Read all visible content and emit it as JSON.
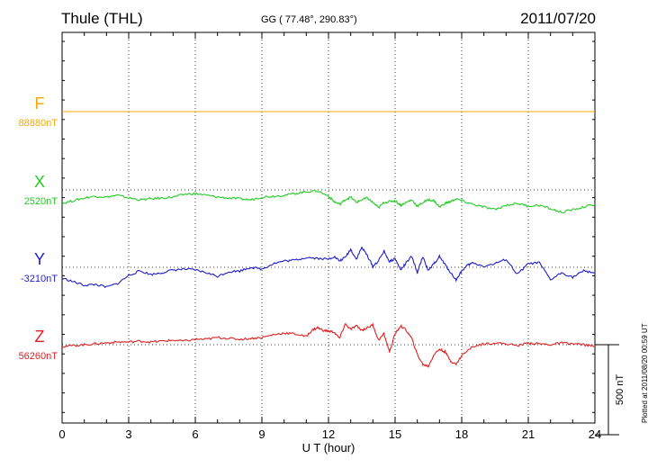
{
  "header": {
    "station": "Thule (THL)",
    "coords": "GG ( 77.48°, 290.83°)",
    "date": "2011/07/20"
  },
  "footer": {
    "plotted": "Plotted at 2011/08/20 00:59 UT"
  },
  "chart_data": {
    "type": "line",
    "xlabel": "U T (hour)",
    "xlim": [
      0,
      24
    ],
    "xticks": [
      "0",
      "3",
      "6",
      "9",
      "12",
      "15",
      "18",
      "21",
      "24"
    ],
    "scale_bar": {
      "label": "500 nT",
      "value": 500
    },
    "grid": true,
    "series": [
      {
        "name": "F",
        "baseline_label": "88880nT",
        "color": "#f5a800",
        "x": [
          0,
          24
        ],
        "y": [
          0,
          0
        ]
      },
      {
        "name": "X",
        "baseline_label": "2520nT",
        "color": "#22cc22",
        "x": [
          0,
          0.5,
          1,
          1.5,
          2,
          2.5,
          3,
          3.5,
          4,
          4.5,
          5,
          5.5,
          6,
          6.5,
          7,
          7.5,
          8,
          8.5,
          9,
          9.5,
          10,
          10.5,
          11,
          11.5,
          12,
          12.25,
          12.5,
          12.75,
          13,
          13.25,
          13.5,
          13.75,
          14,
          14.25,
          14.5,
          14.75,
          15,
          15.25,
          15.5,
          15.75,
          16,
          16.25,
          16.5,
          16.75,
          17,
          17.25,
          17.5,
          17.75,
          18,
          18.5,
          19,
          19.5,
          20,
          20.5,
          21,
          21.5,
          22,
          22.5,
          23,
          23.5,
          24
        ],
        "y": [
          -75,
          -60,
          -45,
          -35,
          -40,
          -30,
          -45,
          -55,
          -50,
          -45,
          -40,
          -25,
          -20,
          -30,
          -40,
          -45,
          -50,
          -55,
          -40,
          -35,
          -30,
          -20,
          -10,
          -5,
          -35,
          -65,
          -80,
          -55,
          -40,
          -70,
          -55,
          -45,
          -70,
          -100,
          -70,
          -65,
          -60,
          -85,
          -70,
          -55,
          -90,
          -70,
          -55,
          -60,
          -95,
          -75,
          -65,
          -50,
          -60,
          -80,
          -95,
          -110,
          -85,
          -75,
          -90,
          -85,
          -105,
          -125,
          -110,
          -95,
          -80
        ]
      },
      {
        "name": "Y",
        "baseline_label": "-3210nT",
        "color": "#1e1ec8",
        "x": [
          0,
          0.5,
          1,
          1.5,
          2,
          2.5,
          3,
          3.5,
          4,
          4.5,
          5,
          5.5,
          6,
          6.5,
          7,
          7.5,
          8,
          8.5,
          9,
          9.5,
          10,
          10.5,
          11,
          11.5,
          12,
          12.25,
          12.5,
          12.75,
          13,
          13.25,
          13.5,
          13.75,
          14,
          14.25,
          14.5,
          14.75,
          15,
          15.25,
          15.5,
          15.75,
          16,
          16.25,
          16.5,
          16.75,
          17,
          17.25,
          17.5,
          17.75,
          18,
          18.25,
          18.5,
          19,
          19.5,
          20,
          20.5,
          21,
          21.5,
          22,
          22.5,
          23,
          23.5,
          24
        ],
        "y": [
          -60,
          -80,
          -100,
          -95,
          -110,
          -90,
          -45,
          -20,
          -40,
          -30,
          -15,
          -10,
          -15,
          -30,
          -50,
          -25,
          -20,
          0,
          -10,
          20,
          35,
          40,
          55,
          50,
          45,
          60,
          35,
          55,
          100,
          45,
          110,
          65,
          5,
          35,
          90,
          30,
          50,
          -15,
          25,
          60,
          -30,
          60,
          -20,
          20,
          60,
          15,
          -30,
          -70,
          -20,
          10,
          25,
          5,
          20,
          45,
          -40,
          20,
          25,
          -70,
          -30,
          -55,
          -20,
          -30
        ]
      },
      {
        "name": "Z",
        "baseline_label": "56260nT",
        "color": "#e02020",
        "x": [
          0,
          0.5,
          1,
          1.5,
          2,
          2.5,
          3,
          3.5,
          4,
          4.5,
          5,
          5.5,
          6,
          6.5,
          7,
          7.5,
          8,
          8.5,
          9,
          9.5,
          10,
          10.5,
          11,
          11.25,
          11.5,
          11.75,
          12,
          12.25,
          12.5,
          12.75,
          13,
          13.25,
          13.5,
          13.75,
          14,
          14.25,
          14.5,
          14.75,
          15,
          15.25,
          15.5,
          15.75,
          16,
          16.25,
          16.5,
          16.75,
          17,
          17.25,
          17.5,
          17.75,
          18,
          18.5,
          19,
          19.5,
          20,
          20.5,
          21,
          21.5,
          22,
          22.5,
          23,
          23.5,
          24
        ],
        "y": [
          -10,
          -5,
          0,
          5,
          10,
          15,
          15,
          20,
          15,
          20,
          25,
          20,
          30,
          30,
          40,
          35,
          30,
          35,
          40,
          55,
          65,
          60,
          45,
          80,
          95,
          80,
          75,
          70,
          35,
          115,
          85,
          105,
          80,
          95,
          110,
          25,
          60,
          -40,
          60,
          105,
          80,
          35,
          -55,
          -110,
          -120,
          -55,
          -25,
          -40,
          -90,
          -110,
          -60,
          -10,
          5,
          10,
          5,
          -5,
          10,
          5,
          0,
          10,
          5,
          0,
          -10
        ]
      }
    ]
  }
}
